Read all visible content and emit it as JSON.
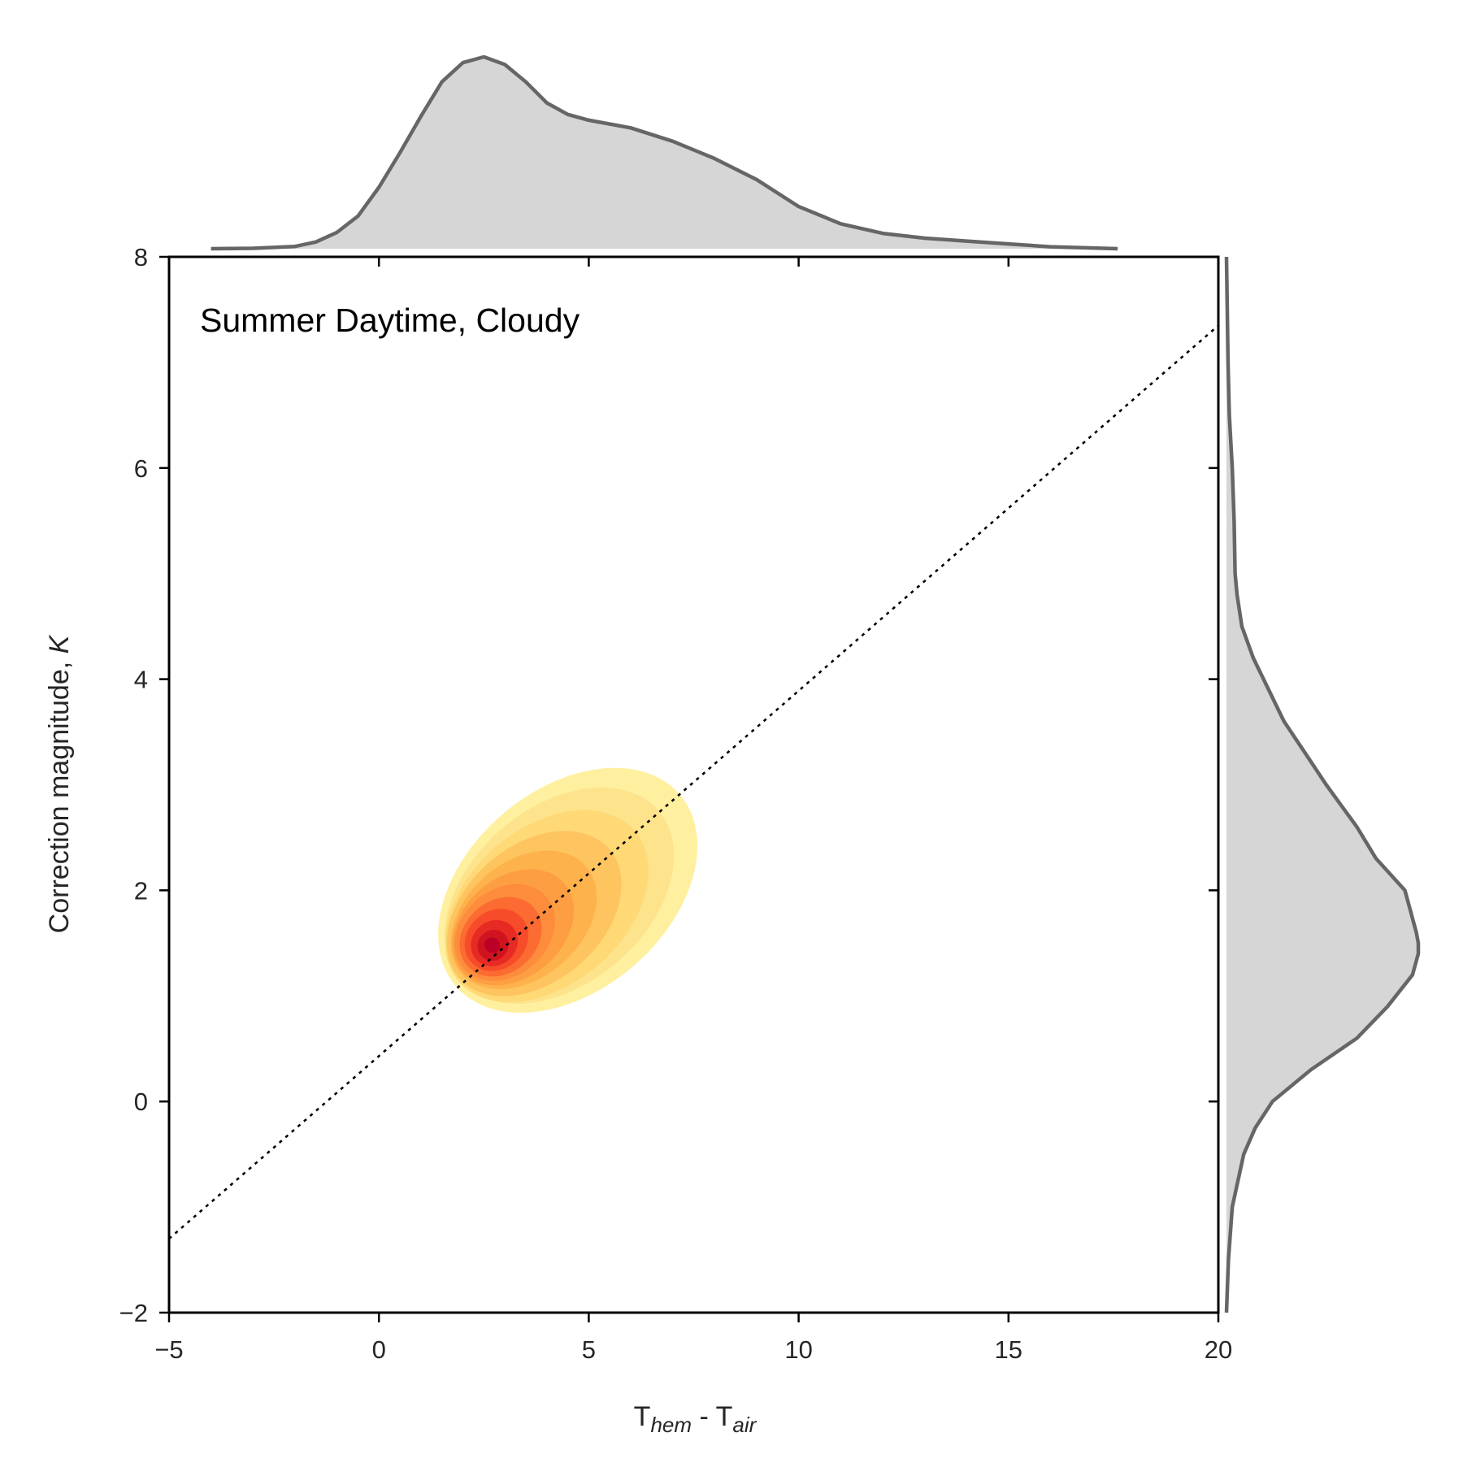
{
  "chart_data": {
    "type": "kde_joint",
    "annotation": "Summer Daytime, Cloudy",
    "xlabel": {
      "main": "T",
      "sub1": "hem",
      "sep": " - ",
      "main2": "T",
      "sub2": "air"
    },
    "ylabel": {
      "text": "Correction magnitude, ",
      "italic": "K"
    },
    "xlim": [
      -5,
      20
    ],
    "ylim": [
      -2,
      8
    ],
    "xticks": [
      -5,
      0,
      5,
      10,
      15,
      20
    ],
    "xtick_labels": [
      "−5",
      "0",
      "5",
      "10",
      "15",
      "20"
    ],
    "yticks": [
      -2,
      0,
      2,
      4,
      6,
      8
    ],
    "ytick_labels": [
      "−2",
      "0",
      "2",
      "4",
      "6",
      "8"
    ],
    "grid": false,
    "fit_line": {
      "style": "dotted",
      "color": "#000000",
      "points": [
        [
          -5,
          -1.3
        ],
        [
          20,
          7.35
        ]
      ]
    },
    "kde_peak": {
      "x": 2.7,
      "y": 1.5
    },
    "kde_levels": [
      {
        "color": "#fff0a0",
        "cx": 4.5,
        "cy": 2.0,
        "sx": 3.5,
        "sy": 1.0,
        "rot": 20
      },
      {
        "color": "#fee38d",
        "cx": 4.3,
        "cy": 1.95,
        "sx": 3.1,
        "sy": 0.88,
        "rot": 20
      },
      {
        "color": "#fed976",
        "cx": 4.0,
        "cy": 1.85,
        "sx": 2.75,
        "sy": 0.78,
        "rot": 21
      },
      {
        "color": "#fec460",
        "cx": 3.7,
        "cy": 1.78,
        "sx": 2.35,
        "sy": 0.68,
        "rot": 22
      },
      {
        "color": "#feb24c",
        "cx": 3.45,
        "cy": 1.72,
        "sx": 1.95,
        "sy": 0.58,
        "rot": 22
      },
      {
        "color": "#fd9e43",
        "cx": 3.2,
        "cy": 1.65,
        "sx": 1.6,
        "sy": 0.5,
        "rot": 23
      },
      {
        "color": "#fd8d3c",
        "cx": 3.0,
        "cy": 1.6,
        "sx": 1.3,
        "sy": 0.43,
        "rot": 23
      },
      {
        "color": "#fc6b31",
        "cx": 2.9,
        "cy": 1.56,
        "sx": 1.05,
        "sy": 0.36,
        "rot": 23
      },
      {
        "color": "#f74c2a",
        "cx": 2.8,
        "cy": 1.53,
        "sx": 0.8,
        "sy": 0.29,
        "rot": 23
      },
      {
        "color": "#e72a24",
        "cx": 2.75,
        "cy": 1.5,
        "sx": 0.58,
        "sy": 0.22,
        "rot": 23
      },
      {
        "color": "#d0141f",
        "cx": 2.72,
        "cy": 1.48,
        "sx": 0.38,
        "sy": 0.15,
        "rot": 23
      },
      {
        "color": "#bb0026",
        "cx": 2.7,
        "cy": 1.48,
        "sx": 0.18,
        "sy": 0.08,
        "rot": 23
      }
    ],
    "marginal_x": {
      "fill": "#d6d6d6",
      "line": "#666666",
      "x": [
        -4.0,
        -3.0,
        -2.0,
        -1.5,
        -1.0,
        -0.5,
        0.0,
        0.5,
        1.0,
        1.5,
        2.0,
        2.5,
        3.0,
        3.5,
        4.0,
        4.5,
        5.0,
        6.0,
        7.0,
        8.0,
        9.0,
        10.0,
        11.0,
        12.0,
        13.0,
        14.0,
        15.0,
        16.0,
        17.6
      ],
      "density": [
        0.0,
        0.002,
        0.012,
        0.035,
        0.085,
        0.17,
        0.32,
        0.5,
        0.69,
        0.87,
        0.97,
        1.0,
        0.96,
        0.87,
        0.76,
        0.7,
        0.67,
        0.63,
        0.56,
        0.47,
        0.36,
        0.22,
        0.13,
        0.08,
        0.055,
        0.04,
        0.025,
        0.01,
        0.0
      ]
    },
    "marginal_y": {
      "fill": "#d6d6d6",
      "line": "#666666",
      "y": [
        -2.0,
        -1.5,
        -1.0,
        -0.5,
        -0.25,
        0.0,
        0.3,
        0.6,
        0.9,
        1.2,
        1.4,
        1.5,
        1.6,
        1.8,
        2.0,
        2.3,
        2.6,
        3.0,
        3.3,
        3.6,
        3.9,
        4.2,
        4.5,
        4.8,
        5.0,
        5.5,
        6.0,
        6.5,
        7.0,
        8.0
      ],
      "density": [
        0.0,
        0.01,
        0.03,
        0.09,
        0.15,
        0.24,
        0.44,
        0.68,
        0.84,
        0.97,
        1.0,
        1.0,
        0.99,
        0.96,
        0.93,
        0.78,
        0.68,
        0.52,
        0.41,
        0.3,
        0.22,
        0.14,
        0.08,
        0.055,
        0.045,
        0.04,
        0.03,
        0.015,
        0.008,
        0.0
      ]
    }
  }
}
